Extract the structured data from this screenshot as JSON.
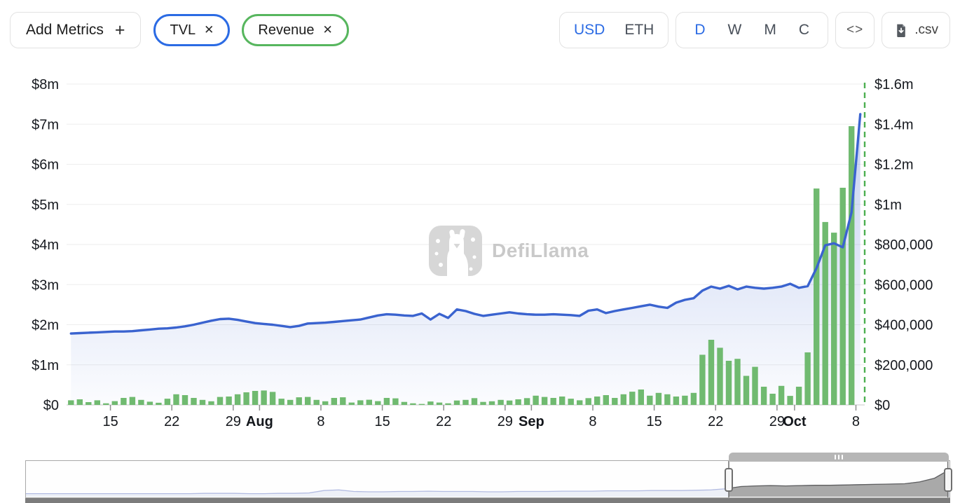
{
  "toolbar": {
    "add_metrics_label": "Add Metrics",
    "add_metrics_plus": "+",
    "metrics": [
      {
        "label": "TVL",
        "close": "✕",
        "color": "#2b6be4"
      },
      {
        "label": "Revenue",
        "close": "✕",
        "color": "#57b65e"
      }
    ],
    "currency": {
      "options": [
        "USD",
        "ETH"
      ],
      "selected": "USD"
    },
    "timeframe": {
      "options": [
        "D",
        "W",
        "M",
        "C"
      ],
      "selected": "D"
    },
    "embed_label": "<>",
    "csv_label": ".csv"
  },
  "watermark": {
    "text": "DefiLlama"
  },
  "chart_data": {
    "type": "mixed",
    "n_points": 91,
    "x_range": [
      "Jul 10",
      "Oct 8"
    ],
    "x_ticks": [
      {
        "i": 5,
        "label": "15"
      },
      {
        "i": 12,
        "label": "22"
      },
      {
        "i": 19,
        "label": "29"
      },
      {
        "i": 22,
        "label": "Aug",
        "bold": true
      },
      {
        "i": 29,
        "label": "8"
      },
      {
        "i": 36,
        "label": "15"
      },
      {
        "i": 43,
        "label": "22"
      },
      {
        "i": 50,
        "label": "29"
      },
      {
        "i": 53,
        "label": "Sep",
        "bold": true
      },
      {
        "i": 60,
        "label": "8"
      },
      {
        "i": 67,
        "label": "15"
      },
      {
        "i": 74,
        "label": "22"
      },
      {
        "i": 81,
        "label": "29"
      },
      {
        "i": 83,
        "label": "Oct",
        "bold": true
      },
      {
        "i": 90,
        "label": "8"
      }
    ],
    "series": [
      {
        "name": "TVL",
        "type": "line",
        "axis": "left",
        "color": "#3a63cf",
        "unit": "USD millions",
        "values": [
          1.78,
          1.79,
          1.8,
          1.81,
          1.82,
          1.83,
          1.83,
          1.84,
          1.86,
          1.88,
          1.9,
          1.91,
          1.93,
          1.96,
          2.0,
          2.05,
          2.1,
          2.14,
          2.15,
          2.12,
          2.08,
          2.04,
          2.02,
          2.0,
          1.97,
          1.94,
          1.97,
          2.03,
          2.04,
          2.05,
          2.07,
          2.09,
          2.11,
          2.13,
          2.18,
          2.23,
          2.26,
          2.25,
          2.23,
          2.22,
          2.28,
          2.13,
          2.27,
          2.17,
          2.38,
          2.34,
          2.27,
          2.22,
          2.25,
          2.28,
          2.31,
          2.28,
          2.26,
          2.25,
          2.25,
          2.26,
          2.25,
          2.24,
          2.22,
          2.35,
          2.38,
          2.29,
          2.34,
          2.38,
          2.42,
          2.46,
          2.5,
          2.45,
          2.42,
          2.55,
          2.62,
          2.66,
          2.85,
          2.95,
          2.9,
          2.97,
          2.88,
          2.95,
          2.92,
          2.9,
          2.92,
          2.95,
          3.02,
          2.92,
          2.96,
          3.41,
          3.98,
          4.03,
          3.93,
          4.8,
          7.25
        ]
      },
      {
        "name": "Revenue",
        "type": "bar",
        "axis": "right",
        "color": "#70ba70",
        "unit": "USD",
        "values": [
          23000,
          28000,
          14000,
          23000,
          8000,
          19000,
          35000,
          40000,
          25000,
          16000,
          11000,
          31000,
          53000,
          49000,
          35000,
          25000,
          18000,
          40000,
          42000,
          53000,
          63000,
          70000,
          72000,
          65000,
          31000,
          25000,
          38000,
          40000,
          25000,
          18000,
          35000,
          38000,
          12000,
          23000,
          26000,
          19000,
          35000,
          33000,
          15000,
          8000,
          5000,
          17000,
          12000,
          8000,
          22000,
          25000,
          34000,
          15000,
          18000,
          25000,
          22000,
          28000,
          34000,
          46000,
          40000,
          35000,
          42000,
          31000,
          23000,
          34000,
          42000,
          49000,
          35000,
          53000,
          66000,
          77000,
          46000,
          60000,
          53000,
          42000,
          46000,
          60000,
          250000,
          325000,
          285000,
          220000,
          230000,
          145000,
          190000,
          91000,
          56000,
          95000,
          45000,
          91000,
          262000,
          1079000,
          912000,
          859000,
          1083000,
          1390000,
          0
        ]
      }
    ],
    "left_axis": {
      "min": 0,
      "max": 8000000,
      "tick_labels": [
        "$0",
        "$1m",
        "$2m",
        "$3m",
        "$4m",
        "$5m",
        "$6m",
        "$7m",
        "$8m"
      ]
    },
    "right_axis": {
      "min": 0,
      "max": 1600000,
      "tick_labels": [
        "$0",
        "$200,000",
        "$400,000",
        "$600,000",
        "$800,000",
        "$1m",
        "$1.2m",
        "$1.4m",
        "$1.6m"
      ]
    },
    "today_marker_color": "#4caf50",
    "grid": true
  },
  "navigator": {
    "profile": [
      0.1,
      0.1,
      0.1,
      0.1,
      0.1,
      0.1,
      0.1,
      0.1,
      0.1,
      0.1,
      0.1,
      0.1,
      0.11,
      0.11,
      0.11,
      0.1,
      0.1,
      0.11,
      0.11,
      0.12,
      0.2,
      0.22,
      0.17,
      0.16,
      0.16,
      0.17,
      0.17,
      0.18,
      0.17,
      0.17,
      0.17,
      0.16,
      0.16,
      0.17,
      0.17,
      0.17,
      0.18,
      0.18,
      0.18,
      0.19,
      0.19,
      0.19,
      0.2,
      0.2,
      0.2,
      0.21,
      0.22,
      0.26,
      0.33,
      0.35,
      0.36,
      0.35,
      0.36,
      0.37,
      0.37,
      0.38,
      0.39,
      0.4,
      0.41,
      0.42,
      0.48,
      0.6,
      0.88
    ],
    "selection": [
      0.761,
      0.999
    ]
  }
}
